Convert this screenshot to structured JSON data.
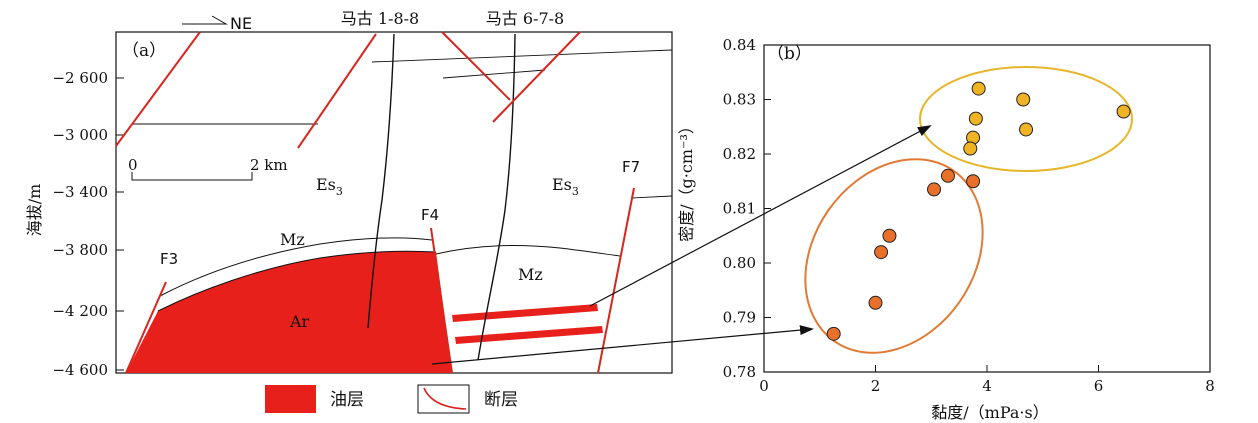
{
  "left_panel": {
    "label": "（a）",
    "direction": "NE",
    "wells": [
      "马古 1-8-8",
      "马古 6-7-8"
    ],
    "y_axis_label": "海拔/m",
    "y_ticks": [
      "−2 600",
      "−3 000",
      "−3 400",
      "−3 800",
      "−4 200",
      "−4 600"
    ],
    "scale_start": "0",
    "scale_end": "2 km",
    "formations": {
      "es3_left": "Es",
      "es3_right": "Es",
      "es3_sub": "3",
      "mz_left": "Mz",
      "mz_right": "Mz",
      "ar": "Ar"
    },
    "faults": [
      "F3",
      "F4",
      "F7"
    ],
    "legend": {
      "oil_layer": "油层",
      "fault": "断层"
    },
    "colors": {
      "oil": "#e8201c",
      "fault": "#d8261e",
      "line": "#111111"
    }
  },
  "right_panel": {
    "label": "（b）",
    "colors": {
      "yellow_point": "#f0b323",
      "orange_point": "#e8702a",
      "yellow_ellipse": "#e6b62a",
      "orange_ellipse": "#e07a34"
    }
  },
  "chart_data": {
    "type": "scatter",
    "xlabel": "黏度/（mPa·s）",
    "ylabel": "密度/（g·cm⁻³）",
    "xlim": [
      0,
      8
    ],
    "ylim": [
      0.78,
      0.84
    ],
    "x_ticks": [
      "0",
      "2",
      "4",
      "6",
      "8"
    ],
    "y_ticks": [
      "0.78",
      "0.79",
      "0.80",
      "0.81",
      "0.82",
      "0.83",
      "0.84"
    ],
    "series": [
      {
        "points": [
          [
            3.85,
            0.832
          ],
          [
            4.65,
            0.83
          ],
          [
            6.45,
            0.8278
          ],
          [
            3.8,
            0.8265
          ],
          [
            4.7,
            0.8245
          ],
          [
            3.75,
            0.823
          ],
          [
            3.7,
            0.821
          ]
        ]
      },
      {
        "points": [
          [
            1.25,
            0.787
          ],
          [
            2.0,
            0.7927
          ],
          [
            2.1,
            0.802
          ],
          [
            2.25,
            0.805
          ],
          [
            3.05,
            0.8135
          ],
          [
            3.3,
            0.816
          ],
          [
            3.75,
            0.815
          ]
        ]
      }
    ]
  }
}
